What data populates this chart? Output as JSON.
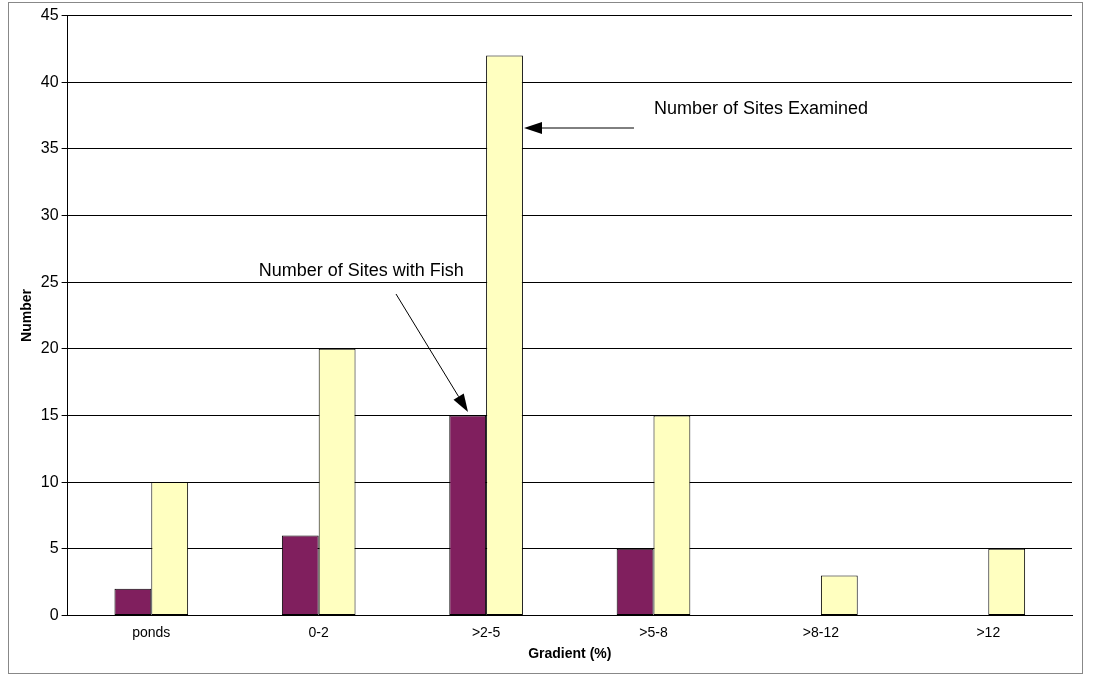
{
  "chart_data": {
    "type": "bar",
    "xlabel": "Gradient (%)",
    "ylabel": "Number",
    "categories": [
      "ponds",
      "0-2",
      ">2-5",
      ">5-8",
      ">8-12",
      ">12"
    ],
    "series": [
      {
        "color": "#801f5e",
        "values": [
          2,
          6,
          15,
          5,
          0,
          0
        ]
      },
      {
        "color": "#ffffc0",
        "values": [
          10,
          20,
          42,
          15,
          3,
          5
        ]
      }
    ],
    "annotations": [
      "Number of Sites with Fish",
      "Number of Sites Examined"
    ],
    "ylim": [
      0,
      45
    ],
    "yticks": [
      0,
      5,
      10,
      15,
      20,
      25,
      30,
      35,
      40,
      45
    ],
    "grid": "y",
    "legend": false
  }
}
